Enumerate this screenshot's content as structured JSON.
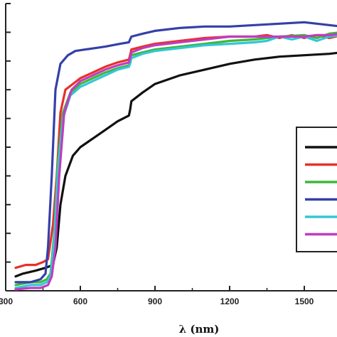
{
  "chart_data": {
    "type": "line",
    "title": "",
    "xlabel": "λ (nm)",
    "ylabel": "",
    "xlim": [
      300,
      1800
    ],
    "ylim": [
      0,
      100
    ],
    "x_ticks": [
      {
        "value": 300,
        "label": "300"
      },
      {
        "value": 600,
        "label": "600"
      },
      {
        "value": 900,
        "label": "900"
      },
      {
        "value": 1200,
        "label": "1200"
      },
      {
        "value": 1500,
        "label": "1500"
      }
    ],
    "y_tick_count": 11,
    "grid": false,
    "legend": "right",
    "series": [
      {
        "color": "#111111",
        "points": [
          [
            340,
            5
          ],
          [
            370,
            6
          ],
          [
            420,
            7
          ],
          [
            460,
            8
          ],
          [
            490,
            9
          ],
          [
            505,
            15
          ],
          [
            520,
            30
          ],
          [
            540,
            40
          ],
          [
            570,
            47
          ],
          [
            600,
            50
          ],
          [
            650,
            53
          ],
          [
            700,
            56
          ],
          [
            750,
            59
          ],
          [
            795,
            61
          ],
          [
            800,
            63
          ],
          [
            805,
            66
          ],
          [
            850,
            69
          ],
          [
            900,
            72
          ],
          [
            1000,
            75
          ],
          [
            1100,
            77
          ],
          [
            1200,
            79
          ],
          [
            1300,
            80.5
          ],
          [
            1400,
            81.5
          ],
          [
            1500,
            82
          ],
          [
            1600,
            82.5
          ],
          [
            1650,
            83
          ]
        ]
      },
      {
        "color": "#e8302a",
        "points": [
          [
            340,
            8
          ],
          [
            380,
            9
          ],
          [
            420,
            9
          ],
          [
            450,
            10
          ],
          [
            470,
            11
          ],
          [
            490,
            23
          ],
          [
            505,
            40
          ],
          [
            520,
            62
          ],
          [
            540,
            70
          ],
          [
            570,
            72
          ],
          [
            600,
            74
          ],
          [
            650,
            76
          ],
          [
            700,
            78
          ],
          [
            750,
            79.5
          ],
          [
            795,
            80.5
          ],
          [
            800,
            82
          ],
          [
            805,
            84
          ],
          [
            850,
            85
          ],
          [
            900,
            86
          ],
          [
            1000,
            87
          ],
          [
            1100,
            88
          ],
          [
            1200,
            88.5
          ],
          [
            1300,
            88.5
          ],
          [
            1350,
            89
          ],
          [
            1400,
            88
          ],
          [
            1450,
            89
          ],
          [
            1500,
            88
          ],
          [
            1550,
            89
          ],
          [
            1600,
            88
          ],
          [
            1650,
            89
          ]
        ]
      },
      {
        "color": "#3db83a",
        "points": [
          [
            340,
            2
          ],
          [
            400,
            3
          ],
          [
            440,
            3
          ],
          [
            465,
            4
          ],
          [
            480,
            6
          ],
          [
            495,
            20
          ],
          [
            510,
            45
          ],
          [
            530,
            62
          ],
          [
            560,
            69
          ],
          [
            600,
            72
          ],
          [
            650,
            74
          ],
          [
            700,
            76
          ],
          [
            750,
            77.5
          ],
          [
            795,
            78.5
          ],
          [
            800,
            80
          ],
          [
            805,
            82
          ],
          [
            850,
            83
          ],
          [
            900,
            84
          ],
          [
            1000,
            85
          ],
          [
            1100,
            86
          ],
          [
            1200,
            87
          ],
          [
            1300,
            87.5
          ],
          [
            1400,
            88.5
          ],
          [
            1500,
            89
          ],
          [
            1550,
            88
          ],
          [
            1600,
            89.5
          ],
          [
            1650,
            90
          ]
        ]
      },
      {
        "color": "#3440a8",
        "points": [
          [
            340,
            3
          ],
          [
            400,
            3
          ],
          [
            440,
            4
          ],
          [
            460,
            6
          ],
          [
            470,
            15
          ],
          [
            485,
            40
          ],
          [
            500,
            70
          ],
          [
            520,
            79
          ],
          [
            550,
            82
          ],
          [
            580,
            83.5
          ],
          [
            620,
            84
          ],
          [
            700,
            85
          ],
          [
            760,
            86
          ],
          [
            795,
            86.5
          ],
          [
            800,
            87.5
          ],
          [
            805,
            88.5
          ],
          [
            850,
            89.5
          ],
          [
            900,
            90.5
          ],
          [
            1000,
            91.5
          ],
          [
            1100,
            92
          ],
          [
            1200,
            92
          ],
          [
            1300,
            92.5
          ],
          [
            1400,
            93
          ],
          [
            1500,
            93.5
          ],
          [
            1550,
            93
          ],
          [
            1600,
            92.5
          ],
          [
            1650,
            92
          ]
        ]
      },
      {
        "color": "#35c6d6",
        "points": [
          [
            340,
            1
          ],
          [
            400,
            2
          ],
          [
            440,
            2
          ],
          [
            465,
            3
          ],
          [
            480,
            5
          ],
          [
            495,
            18
          ],
          [
            510,
            42
          ],
          [
            530,
            60
          ],
          [
            560,
            68
          ],
          [
            600,
            71
          ],
          [
            650,
            73
          ],
          [
            700,
            75
          ],
          [
            750,
            77
          ],
          [
            795,
            78
          ],
          [
            800,
            79
          ],
          [
            805,
            81
          ],
          [
            850,
            82.5
          ],
          [
            900,
            83.5
          ],
          [
            1000,
            84.5
          ],
          [
            1100,
            85.5
          ],
          [
            1200,
            86
          ],
          [
            1300,
            86.5
          ],
          [
            1350,
            87
          ],
          [
            1400,
            88.5
          ],
          [
            1450,
            87.5
          ],
          [
            1500,
            88.5
          ],
          [
            1550,
            87
          ],
          [
            1600,
            88.5
          ],
          [
            1650,
            89
          ]
        ]
      },
      {
        "color": "#c03cc0",
        "points": [
          [
            340,
            0.5
          ],
          [
            400,
            1
          ],
          [
            440,
            1
          ],
          [
            470,
            2
          ],
          [
            485,
            5
          ],
          [
            500,
            15
          ],
          [
            515,
            40
          ],
          [
            535,
            62
          ],
          [
            565,
            70
          ],
          [
            600,
            73
          ],
          [
            650,
            75
          ],
          [
            700,
            77
          ],
          [
            750,
            78.5
          ],
          [
            795,
            79.5
          ],
          [
            800,
            81
          ],
          [
            805,
            83
          ],
          [
            850,
            84.5
          ],
          [
            900,
            85.5
          ],
          [
            1000,
            86.5
          ],
          [
            1100,
            87.5
          ],
          [
            1200,
            88.5
          ],
          [
            1300,
            88.5
          ],
          [
            1400,
            88.5
          ],
          [
            1500,
            88.5
          ],
          [
            1550,
            89
          ],
          [
            1600,
            89
          ],
          [
            1650,
            89.5
          ]
        ]
      }
    ]
  }
}
